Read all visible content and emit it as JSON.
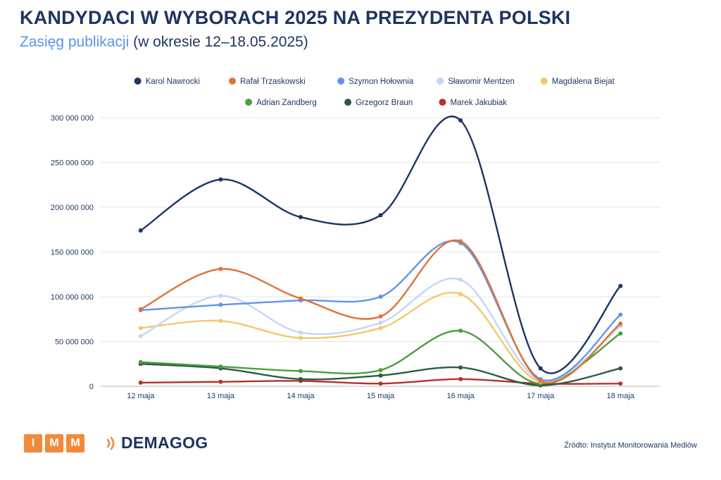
{
  "header": {
    "title": "KANDYDACI W WYBORACH 2025 NA PREZYDENTA POLSKI",
    "subtitle_accent": "Zasięg publikacji",
    "subtitle_rest": "(w okresie 12–18.05.2025)"
  },
  "footer": {
    "imm_letters": [
      "I",
      "M",
      "M"
    ],
    "demagog_label": "DEMAGOG",
    "source": "Źródto: Instytut Monitorowania Mediów"
  },
  "colors": {
    "title": "#1d355e",
    "accent": "#5b93e6",
    "imm_orange": "#f28a3c",
    "demagog_orange": "#f28a3c"
  },
  "chart_data": {
    "type": "line",
    "categories": [
      "12 maja",
      "13 maja",
      "14 maja",
      "15 maja",
      "16 maja",
      "17 maja",
      "18 maja"
    ],
    "ylim": [
      0,
      300000000
    ],
    "yticks": [
      0,
      50000000,
      100000000,
      150000000,
      200000000,
      250000000,
      300000000
    ],
    "ytick_labels": [
      "0",
      "50 000 000",
      "100 000 000",
      "150 000 000",
      "200 000 000",
      "250 000 000",
      "300 000 000"
    ],
    "grid": true,
    "legend_position": "top",
    "series": [
      {
        "name": "Karol Nawrocki",
        "color": "#1c3562",
        "values": [
          174000000,
          231000000,
          189000000,
          191000000,
          297000000,
          20000000,
          112000000
        ]
      },
      {
        "name": "Rafał Trzaskowski",
        "color": "#e0723a",
        "values": [
          86000000,
          131000000,
          98000000,
          78000000,
          162000000,
          6000000,
          70000000
        ]
      },
      {
        "name": "Szymon Hołownia",
        "color": "#5f95e8",
        "values": [
          85000000,
          91000000,
          96000000,
          100000000,
          160000000,
          8000000,
          80000000
        ]
      },
      {
        "name": "Sławomir Mentzen",
        "color": "#c2d7f5",
        "values": [
          56000000,
          101000000,
          60000000,
          71000000,
          119000000,
          7000000,
          67000000
        ]
      },
      {
        "name": "Magdalena Biejat",
        "color": "#f3c86a",
        "values": [
          65000000,
          73000000,
          54000000,
          65000000,
          103000000,
          5000000,
          68000000
        ]
      },
      {
        "name": "Adrian Zandberg",
        "color": "#4a9e3f",
        "values": [
          27000000,
          22000000,
          17000000,
          18000000,
          62000000,
          3000000,
          59000000
        ]
      },
      {
        "name": "Grzegorz Braun",
        "color": "#2e5a44",
        "values": [
          25000000,
          20000000,
          8000000,
          12000000,
          21000000,
          1000000,
          20000000
        ]
      },
      {
        "name": "Marek Jakubiak",
        "color": "#b3332b",
        "values": [
          4000000,
          5000000,
          6000000,
          3000000,
          8000000,
          3000000,
          3000000
        ]
      }
    ]
  }
}
